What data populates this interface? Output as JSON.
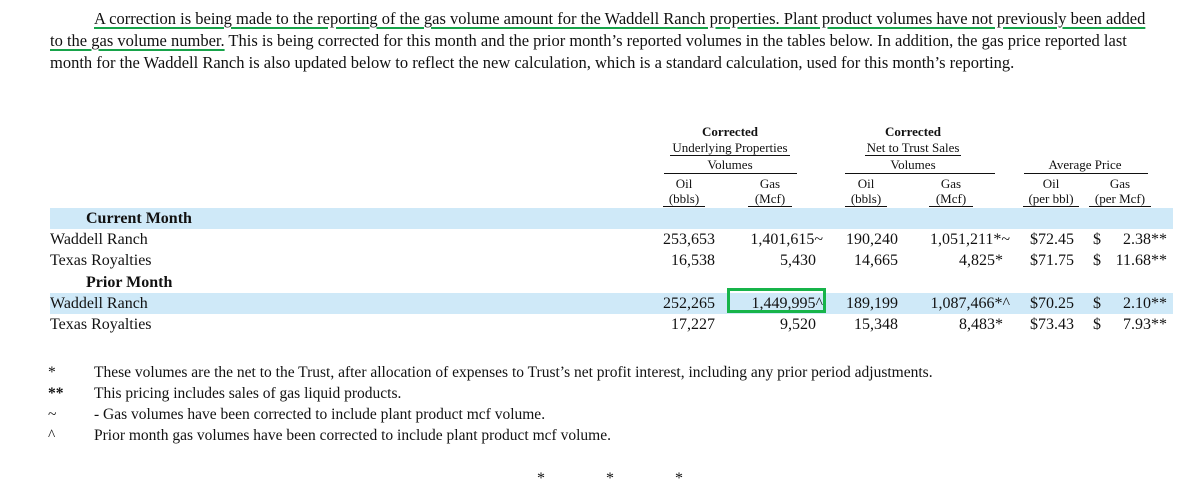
{
  "intro": {
    "highlighted": "A correction is being made to the reporting of the gas volume amount for the Waddell Ranch properties. Plant product volumes have not previously been added to the gas volume number.",
    "rest": " This is being corrected for this month and the prior month’s reported volumes in the tables below. In addition, the gas price reported last month for the Waddell Ranch is also updated below to reflect the new calculation, which is a standard calculation, used for this month’s reporting."
  },
  "table": {
    "group_headers": {
      "underlying": {
        "line1": "Corrected",
        "line2": "Underlying Properties",
        "line3": "Volumes"
      },
      "net": {
        "line1": "Corrected",
        "line2": "Net to Trust Sales",
        "line3": "Volumes"
      },
      "price": {
        "line1": "Average Price"
      }
    },
    "column_headers": {
      "u_oil": {
        "top": "Oil",
        "bottom": "(bbls)"
      },
      "u_gas": {
        "top": "Gas",
        "bottom": "(Mcf)"
      },
      "n_oil": {
        "top": "Oil",
        "bottom": "(bbls)"
      },
      "n_gas": {
        "top": "Gas",
        "bottom": "(Mcf)"
      },
      "p_oil": {
        "top": "Oil",
        "bottom": "(per bbl)"
      },
      "p_gas": {
        "top": "Gas",
        "bottom": "(per Mcf)"
      }
    },
    "sections": [
      {
        "title": "Current Month",
        "rows": [
          {
            "name": "Waddell Ranch",
            "u_oil": "253,653",
            "u_gas": "1,401,615~",
            "n_oil": "190,240",
            "n_gas": "1,051,211*~",
            "p_oil": "$72.45",
            "p_gas_sym": "$",
            "p_gas": "2.38**"
          },
          {
            "name": "Texas Royalties",
            "u_oil": "16,538",
            "u_gas": "5,430",
            "n_oil": "14,665",
            "n_gas": "4,825*",
            "p_oil": "$71.75",
            "p_gas_sym": "$",
            "p_gas": "11.68**"
          }
        ]
      },
      {
        "title": "Prior Month",
        "rows": [
          {
            "name": "Waddell Ranch",
            "u_oil": "252,265",
            "u_gas": "1,449,995^",
            "n_oil": "189,199",
            "n_gas": "1,087,466*^",
            "p_oil": "$70.25",
            "p_gas_sym": "$",
            "p_gas": "2.10**"
          },
          {
            "name": "Texas Royalties",
            "u_oil": "17,227",
            "u_gas": "9,520",
            "n_oil": "15,348",
            "n_gas": "8,483*",
            "p_oil": "$73.43",
            "p_gas_sym": "$",
            "p_gas": "7.93**"
          }
        ]
      }
    ]
  },
  "footnotes": [
    {
      "symbol": "*",
      "text": "These volumes are the net to the Trust, after allocation of expenses to Trust’s net profit interest, including any prior period adjustments."
    },
    {
      "symbol": "**",
      "text": "This pricing includes sales of gas liquid products."
    },
    {
      "symbol": "~",
      "text": "- Gas volumes have been corrected to include plant product mcf volume."
    },
    {
      "symbol": "^",
      "text": "Prior month gas volumes have been corrected to include plant product mcf volume."
    }
  ],
  "divider": {
    "star1": "*",
    "star2": "*",
    "star3": "*"
  },
  "colors": {
    "band": "#cfe9f8",
    "highlight_green": "#17b44a"
  }
}
